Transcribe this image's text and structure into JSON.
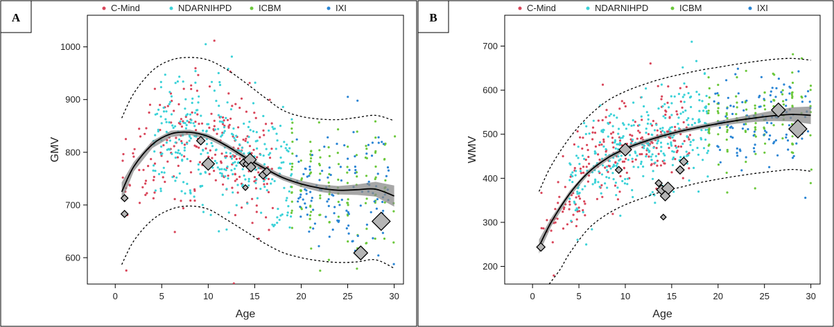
{
  "legend": [
    {
      "name": "C-Mind",
      "color": "#d9465a"
    },
    {
      "name": "NDARNIHPD",
      "color": "#3cd2d8"
    },
    {
      "name": "ICBM",
      "color": "#6cc83c"
    },
    {
      "name": "IXI",
      "color": "#2a85d4"
    }
  ],
  "chart_data": [
    {
      "type": "scatter",
      "panel_label": "A",
      "xlabel": "Age",
      "ylabel": "GMV",
      "xlim": [
        -3,
        31
      ],
      "ylim": [
        550,
        1060
      ],
      "xticks": [
        0,
        5,
        10,
        15,
        20,
        25,
        30
      ],
      "yticks": [
        600,
        700,
        800,
        900,
        1000
      ],
      "fit_x": [
        0.7,
        2,
        4,
        6,
        8,
        10,
        12,
        14,
        16,
        18,
        20,
        22,
        24,
        26,
        28,
        30
      ],
      "fit_y": [
        725,
        773,
        815,
        835,
        838,
        830,
        812,
        790,
        770,
        752,
        740,
        732,
        728,
        729,
        730,
        717
      ],
      "band_halfwidth": [
        18,
        9,
        7,
        6,
        5,
        5,
        5,
        5,
        5,
        5,
        6,
        7,
        8,
        10,
        14,
        20
      ],
      "upper_x": [
        0.7,
        2,
        4,
        6,
        8,
        10,
        12,
        14,
        16,
        18,
        20,
        22,
        24,
        26,
        28,
        30
      ],
      "upper_y": [
        865,
        912,
        955,
        975,
        980,
        975,
        957,
        932,
        905,
        880,
        868,
        863,
        862,
        866,
        870,
        860
      ],
      "lower_x": [
        0.7,
        2,
        4,
        6,
        8,
        10,
        12,
        14,
        16,
        18,
        20,
        22,
        24,
        26,
        28,
        30
      ],
      "lower_y": [
        587,
        632,
        672,
        692,
        698,
        692,
        672,
        650,
        628,
        610,
        600,
        594,
        591,
        592,
        596,
        580
      ],
      "highlights": [
        {
          "x": 1.0,
          "y": 713,
          "size": 5
        },
        {
          "x": 1.0,
          "y": 683,
          "size": 5
        },
        {
          "x": 9.2,
          "y": 822,
          "size": 6
        },
        {
          "x": 10.0,
          "y": 778,
          "size": 9
        },
        {
          "x": 13.8,
          "y": 780,
          "size": 6
        },
        {
          "x": 14.2,
          "y": 778,
          "size": 6
        },
        {
          "x": 14.5,
          "y": 786,
          "size": 9
        },
        {
          "x": 14.6,
          "y": 772,
          "size": 7
        },
        {
          "x": 14.0,
          "y": 733,
          "size": 4
        },
        {
          "x": 15.9,
          "y": 757,
          "size": 6
        },
        {
          "x": 16.3,
          "y": 763,
          "size": 6
        },
        {
          "x": 26.4,
          "y": 609,
          "size": 10
        },
        {
          "x": 28.6,
          "y": 669,
          "size": 13
        }
      ],
      "cohorts": [
        {
          "name": "C-Mind",
          "age_range": [
            0.7,
            17
          ],
          "peak": 838
        },
        {
          "name": "NDARNIHPD",
          "age_range": [
            4,
            19
          ],
          "peak": 838
        },
        {
          "name": "ICBM",
          "age_range": [
            18.5,
            30
          ],
          "peak": 838
        },
        {
          "name": "IXI",
          "age_range": [
            19.5,
            30
          ],
          "peak": 838
        }
      ]
    },
    {
      "type": "scatter",
      "panel_label": "B",
      "xlabel": "Age",
      "ylabel": "WMV",
      "xlim": [
        -3,
        31
      ],
      "ylim": [
        160,
        770
      ],
      "xticks": [
        0,
        5,
        10,
        15,
        20,
        25,
        30
      ],
      "yticks": [
        200,
        300,
        400,
        500,
        600,
        700
      ],
      "fit_x": [
        0.7,
        2,
        4,
        6,
        8,
        10,
        12,
        14,
        16,
        18,
        20,
        22,
        24,
        26,
        28,
        30
      ],
      "fit_y": [
        245,
        300,
        365,
        413,
        445,
        467,
        483,
        496,
        507,
        516,
        524,
        531,
        537,
        542,
        545,
        543
      ],
      "band_halfwidth": [
        16,
        10,
        7,
        6,
        6,
        5,
        5,
        5,
        5,
        5,
        6,
        7,
        9,
        12,
        16,
        20
      ],
      "upper_x": [
        0.7,
        2,
        4,
        6,
        8,
        10,
        12,
        14,
        16,
        18,
        20,
        22,
        24,
        26,
        28,
        30
      ],
      "upper_y": [
        370,
        428,
        492,
        540,
        575,
        597,
        613,
        626,
        636,
        645,
        652,
        659,
        665,
        670,
        672,
        668
      ],
      "lower_x": [
        1.8,
        3,
        4,
        6,
        8,
        10,
        12,
        14,
        16,
        18,
        20,
        22,
        24,
        26,
        28,
        30
      ],
      "lower_y": [
        160,
        194,
        230,
        285,
        318,
        340,
        356,
        370,
        380,
        390,
        398,
        405,
        411,
        416,
        420,
        416
      ],
      "highlights": [
        {
          "x": 0.9,
          "y": 244,
          "size": 6
        },
        {
          "x": 9.3,
          "y": 419,
          "size": 5
        },
        {
          "x": 10.0,
          "y": 465,
          "size": 9
        },
        {
          "x": 13.6,
          "y": 389,
          "size": 5
        },
        {
          "x": 13.9,
          "y": 374,
          "size": 7
        },
        {
          "x": 14.6,
          "y": 377,
          "size": 9
        },
        {
          "x": 14.3,
          "y": 360,
          "size": 7
        },
        {
          "x": 14.1,
          "y": 312,
          "size": 4
        },
        {
          "x": 15.9,
          "y": 419,
          "size": 6
        },
        {
          "x": 16.3,
          "y": 438,
          "size": 6
        },
        {
          "x": 26.5,
          "y": 555,
          "size": 10
        },
        {
          "x": 28.6,
          "y": 512,
          "size": 13
        }
      ],
      "cohorts": [
        {
          "name": "C-Mind",
          "age_range": [
            0.7,
            17
          ],
          "peak": 0
        },
        {
          "name": "NDARNIHPD",
          "age_range": [
            4,
            19
          ],
          "peak": 0
        },
        {
          "name": "ICBM",
          "age_range": [
            18.5,
            30
          ],
          "peak": 0
        },
        {
          "name": "IXI",
          "age_range": [
            19.5,
            30
          ],
          "peak": 0
        }
      ]
    }
  ]
}
